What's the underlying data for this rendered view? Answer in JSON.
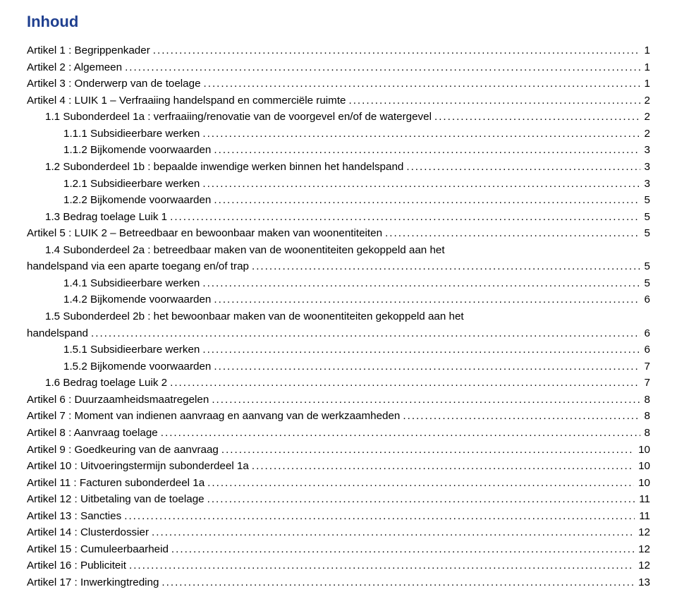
{
  "title": "Inhoud",
  "title_color": "#1f3f8f",
  "text_color": "#000000",
  "background_color": "#ffffff",
  "font_family": "Verdana, Geneva, sans-serif",
  "title_fontsize": 22,
  "body_fontsize": 15.2,
  "entries": [
    {
      "indent": 0,
      "label": "Artikel 1 : Begrippenkader",
      "page": "1"
    },
    {
      "indent": 0,
      "label": "Artikel 2 : Algemeen",
      "page": "1"
    },
    {
      "indent": 0,
      "label": "Artikel 3 : Onderwerp van de toelage",
      "page": "1"
    },
    {
      "indent": 0,
      "label": "Artikel 4 : LUIK 1 – Verfraaiing handelspand en commerciële ruimte",
      "page": "2"
    },
    {
      "indent": 1,
      "label": "1.1    Subonderdeel 1a : verfraaiing/renovatie van de voorgevel en/of de watergevel",
      "page": "2"
    },
    {
      "indent": 2,
      "label": "1.1.1    Subsidieerbare werken",
      "page": "2"
    },
    {
      "indent": 2,
      "label": "1.1.2    Bijkomende voorwaarden",
      "page": "3"
    },
    {
      "indent": 1,
      "label": "1.2    Subonderdeel 1b : bepaalde inwendige werken binnen het handelspand",
      "page": "3"
    },
    {
      "indent": 2,
      "label": "1.2.1    Subsidieerbare werken",
      "page": "3"
    },
    {
      "indent": 2,
      "label": "1.2.2    Bijkomende voorwaarden",
      "page": "5"
    },
    {
      "indent": 1,
      "label": "1.3    Bedrag toelage Luik 1",
      "page": "5"
    },
    {
      "indent": 0,
      "label": "Artikel 5 : LUIK 2 – Betreedbaar en bewoonbaar maken van woonentiteiten",
      "page": "5"
    },
    {
      "indent": 1,
      "label": "1.4    Subonderdeel 2a : betreedbaar maken van de woonentiteiten gekoppeld aan het",
      "wrap": "handelspand via een aparte toegang en/of trap",
      "page": "5"
    },
    {
      "indent": 2,
      "label": "1.4.1    Subsidieerbare werken",
      "page": "5"
    },
    {
      "indent": 2,
      "label": "1.4.2    Bijkomende voorwaarden",
      "page": "6"
    },
    {
      "indent": 1,
      "label": "1.5    Subonderdeel 2b : het bewoonbaar maken van de woonentiteiten gekoppeld aan het",
      "wrap": "handelspand",
      "page": "6"
    },
    {
      "indent": 2,
      "label": "1.5.1    Subsidieerbare werken",
      "page": "6"
    },
    {
      "indent": 2,
      "label": "1.5.2    Bijkomende voorwaarden",
      "page": "7"
    },
    {
      "indent": 1,
      "label": "1.6    Bedrag toelage Luik 2",
      "page": "7"
    },
    {
      "indent": 0,
      "label": "Artikel 6 : Duurzaamheidsmaatregelen",
      "page": "8"
    },
    {
      "indent": 0,
      "label": "Artikel 7 : Moment van indienen aanvraag en aanvang van de werkzaamheden",
      "page": "8"
    },
    {
      "indent": 0,
      "label": "Artikel 8 : Aanvraag toelage",
      "page": "8"
    },
    {
      "indent": 0,
      "label": "Artikel 9 : Goedkeuring van de aanvraag",
      "page": "10"
    },
    {
      "indent": 0,
      "label": "Artikel 10 : Uitvoeringstermijn subonderdeel 1a",
      "page": "10"
    },
    {
      "indent": 0,
      "label": "Artikel 11 : Facturen subonderdeel 1a",
      "page": "10"
    },
    {
      "indent": 0,
      "label": "Artikel 12 : Uitbetaling van de toelage",
      "page": "11"
    },
    {
      "indent": 0,
      "label": "Artikel 13 : Sancties",
      "page": "11"
    },
    {
      "indent": 0,
      "label": "Artikel 14 : Clusterdossier",
      "page": "12"
    },
    {
      "indent": 0,
      "label": "Artikel 15 : Cumuleerbaarheid",
      "page": "12"
    },
    {
      "indent": 0,
      "label": "Artikel 16 : Publiciteit",
      "page": "12"
    },
    {
      "indent": 0,
      "label": "Artikel 17 : Inwerkingtreding",
      "page": "13"
    }
  ]
}
